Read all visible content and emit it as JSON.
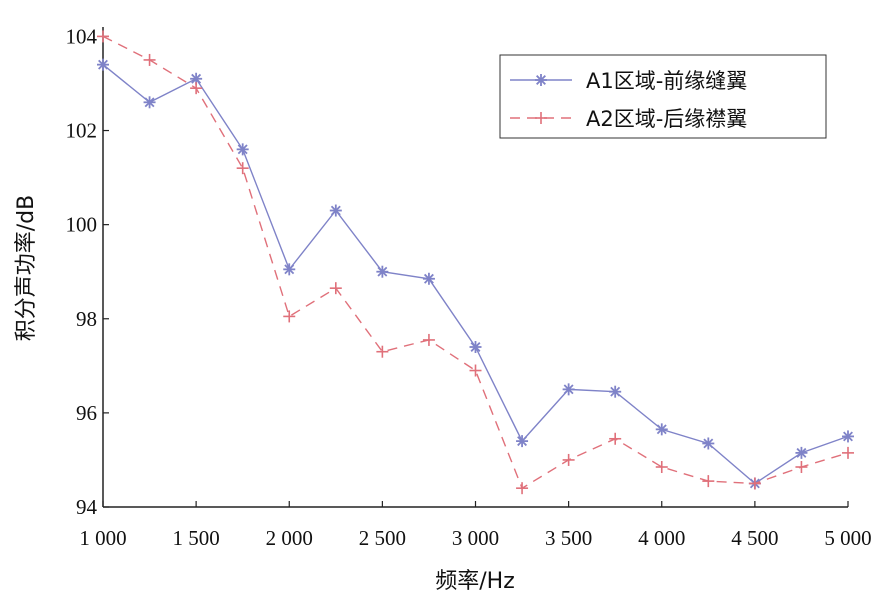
{
  "chart_data": {
    "type": "line",
    "xlabel": "频率/Hz",
    "ylabel": "积分声功率/dB",
    "x": [
      1000,
      1250,
      1500,
      1750,
      2000,
      2250,
      2500,
      2750,
      3000,
      3250,
      3500,
      3750,
      4000,
      4250,
      4500,
      4750,
      5000
    ],
    "xticks": [
      1000,
      1500,
      2000,
      2500,
      3000,
      3500,
      4000,
      4500,
      5000
    ],
    "xtick_labels": [
      "1 000",
      "1 500",
      "2 000",
      "2 500",
      "3 000",
      "3 500",
      "4 000",
      "4 500",
      "5 000"
    ],
    "yticks": [
      94,
      96,
      98,
      100,
      102,
      104
    ],
    "ytick_labels": [
      "94",
      "96",
      "98",
      "100",
      "102",
      "104"
    ],
    "xlim": [
      1000,
      5000
    ],
    "ylim": [
      94,
      104.2
    ],
    "legend_position": "top-right",
    "grid": false,
    "series": [
      {
        "name": "A1区域-前缘缝翼",
        "color": "#7f83c8",
        "marker": "asterisk",
        "line_style": "solid",
        "values": [
          103.4,
          102.6,
          103.1,
          101.6,
          99.05,
          100.3,
          99.0,
          98.85,
          97.4,
          95.4,
          96.5,
          96.45,
          95.65,
          95.35,
          94.5,
          95.15,
          95.5
        ]
      },
      {
        "name": "A2区域-后缘襟翼",
        "color": "#e0707a",
        "marker": "plus",
        "line_style": "dashed",
        "values": [
          104.0,
          103.5,
          102.9,
          101.2,
          98.05,
          98.65,
          97.3,
          97.55,
          96.9,
          94.4,
          95.0,
          95.45,
          94.85,
          94.55,
          94.5,
          94.85,
          95.15
        ]
      }
    ]
  }
}
